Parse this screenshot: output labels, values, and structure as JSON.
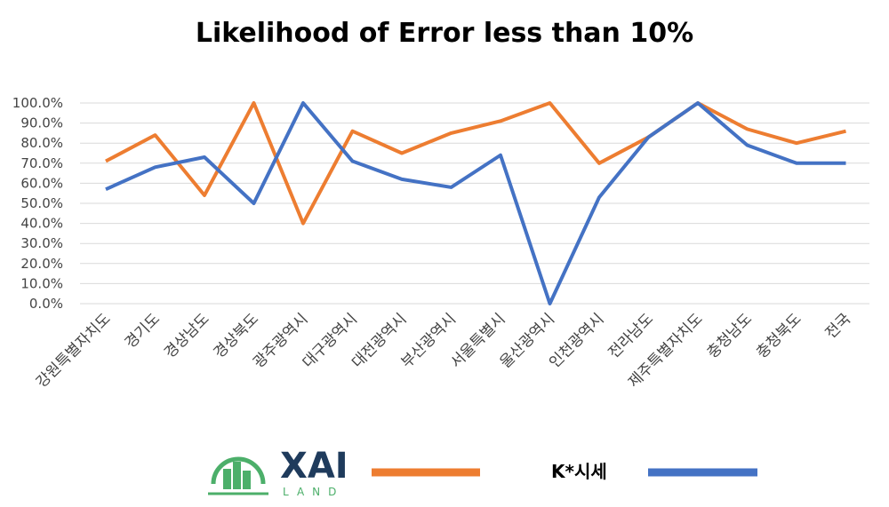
{
  "chart_data": {
    "type": "line",
    "title": "Likelihood of Error less than 10%",
    "categories": [
      "강원특별자치도",
      "경기도",
      "경상남도",
      "경상북도",
      "광주광역시",
      "대구광역시",
      "대전광역시",
      "부산광역시",
      "서울특별시",
      "울산광역시",
      "인천광역시",
      "전라남도",
      "제주특별자치도",
      "충청남도",
      "충청북도",
      "전국"
    ],
    "ylim": [
      0,
      100
    ],
    "yticks": [
      "0.0%",
      "10.0%",
      "20.0%",
      "30.0%",
      "40.0%",
      "50.0%",
      "60.0%",
      "70.0%",
      "80.0%",
      "90.0%",
      "100.0%"
    ],
    "grid": true,
    "legend_position": "bottom",
    "series": [
      {
        "name": "XAI LAND",
        "legend_logo_text": "XAI",
        "legend_logo_sub": "LAND",
        "color": "#ed7d31",
        "values": [
          71,
          84,
          54,
          100,
          40,
          86,
          75,
          85,
          91,
          100,
          70,
          83,
          100,
          87,
          80,
          86
        ]
      },
      {
        "name": "K*시세",
        "color": "#4472c4",
        "values": [
          57,
          68,
          73,
          50,
          100,
          71,
          62,
          58,
          74,
          0,
          53,
          83,
          100,
          79,
          70,
          70
        ]
      }
    ]
  }
}
